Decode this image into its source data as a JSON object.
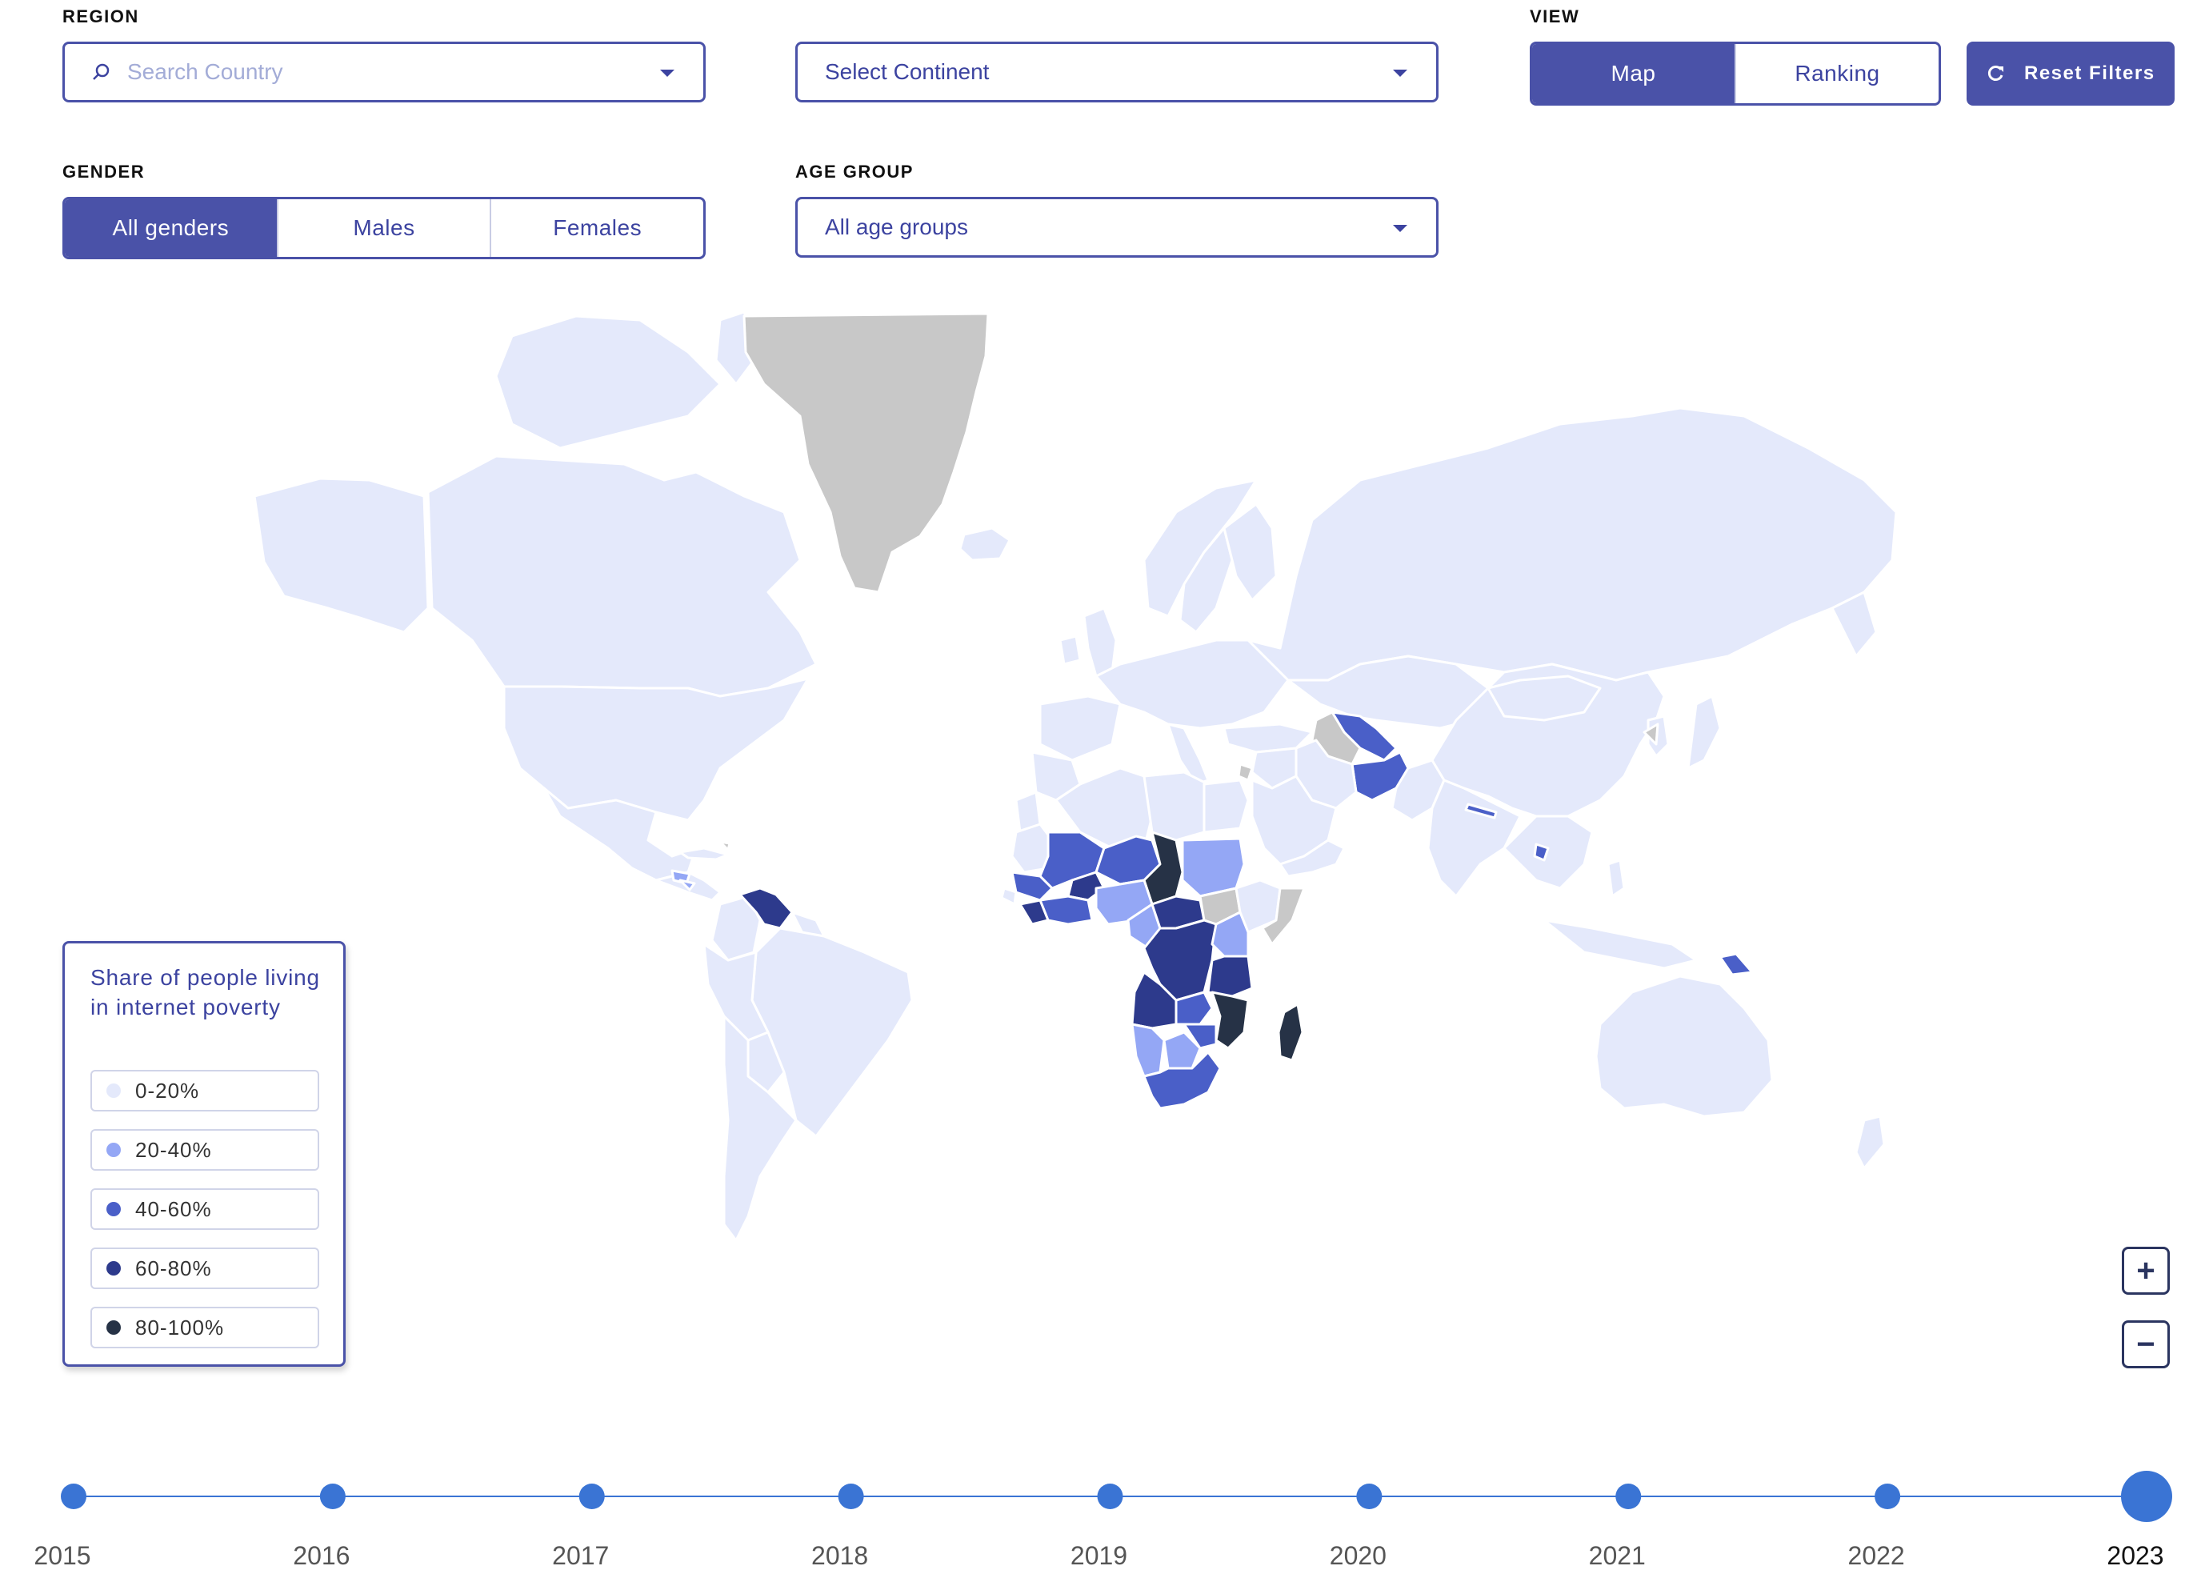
{
  "filters": {
    "region_label": "REGION",
    "search_placeholder": "Search Country",
    "continent_label": "Select Continent",
    "view_label": "VIEW",
    "view_options": [
      "Map",
      "Ranking"
    ],
    "view_selected": "Map",
    "reset_label": "Reset Filters",
    "gender_label": "GENDER",
    "gender_options": [
      "All genders",
      "Males",
      "Females"
    ],
    "gender_selected": "All genders",
    "age_label": "AGE GROUP",
    "age_value": "All age groups"
  },
  "legend": {
    "title": "Share of people living in internet poverty",
    "items": [
      {
        "label": "0-20%",
        "color": "#e4e9fb"
      },
      {
        "label": "20-40%",
        "color": "#94a7f5"
      },
      {
        "label": "40-60%",
        "color": "#4a5fc8"
      },
      {
        "label": "60-80%",
        "color": "#2d3a8c"
      },
      {
        "label": "80-100%",
        "color": "#263246"
      }
    ],
    "no_data_color": "#c8c8c8"
  },
  "zoom": {
    "in_label": "+",
    "out_label": "−"
  },
  "timeline": {
    "years": [
      "2015",
      "2016",
      "2017",
      "2018",
      "2019",
      "2020",
      "2021",
      "2022",
      "2023"
    ],
    "selected": "2023",
    "color": "#3a74d4"
  },
  "map": {
    "colors": {
      "ocean": "#ffffff",
      "border": "#ffffff"
    }
  }
}
